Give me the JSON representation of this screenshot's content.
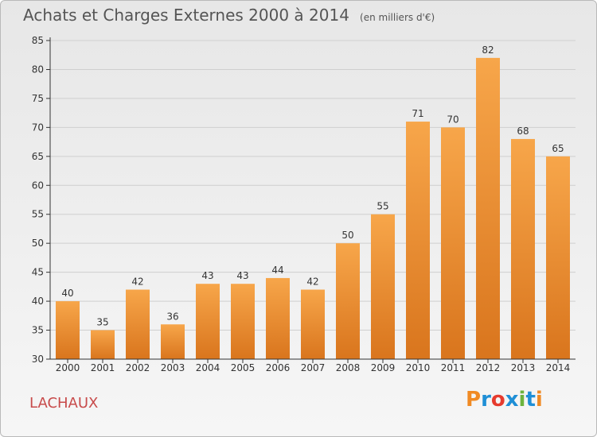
{
  "header": {
    "title": "Achats et Charges Externes 2000 à 2014",
    "subtitle": "(en milliers d'€)"
  },
  "footer": {
    "location": "LACHAUX",
    "brand": "Proxiti",
    "brand_colors": [
      "#f08a24",
      "#1f8fd6",
      "#e63b2e",
      "#1f8fd6",
      "#6cb33e",
      "#1f8fd6",
      "#f08a24"
    ]
  },
  "colors": {
    "bar_light": "#f7a64a",
    "bar_dark": "#d9751d",
    "axis": "#333333",
    "grid": "#cfcfcf",
    "text": "#333333"
  },
  "chart_data": {
    "type": "bar",
    "title": "Achats et Charges Externes 2000 à 2014",
    "subtitle": "(en milliers d'€)",
    "categories": [
      "2000",
      "2001",
      "2002",
      "2003",
      "2004",
      "2005",
      "2006",
      "2007",
      "2008",
      "2009",
      "2010",
      "2011",
      "2012",
      "2013",
      "2014"
    ],
    "values": [
      40,
      35,
      42,
      36,
      43,
      43,
      44,
      42,
      50,
      55,
      71,
      70,
      82,
      68,
      65
    ],
    "data_labels": [
      "40",
      "35",
      "42",
      "36",
      "43",
      "43",
      "44",
      "42",
      "50",
      "55",
      "71",
      "70",
      "82",
      "68",
      "65"
    ],
    "ylim": [
      30,
      85
    ],
    "yticks": [
      30,
      35,
      40,
      45,
      50,
      55,
      60,
      65,
      70,
      75,
      80,
      85
    ],
    "ytick_labels": [
      "30",
      "35",
      "40",
      "45",
      "50",
      "55",
      "60",
      "65",
      "70",
      "75",
      "80",
      "85"
    ],
    "xlabel": "",
    "ylabel": "",
    "grid": true,
    "legend": "none"
  }
}
